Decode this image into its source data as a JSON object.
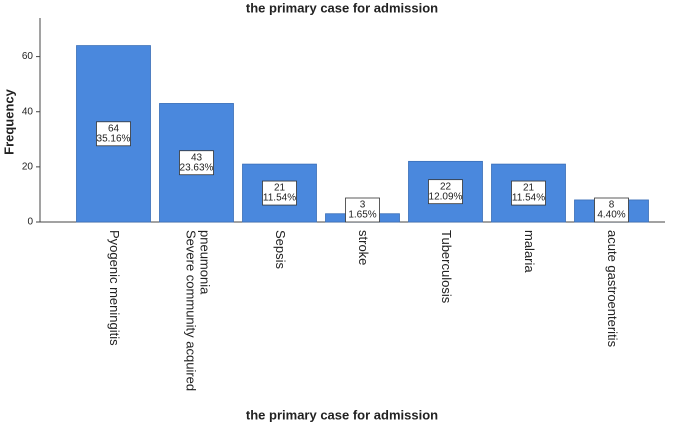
{
  "chart_data": {
    "type": "bar",
    "title": "the primary case for admission",
    "x_label": "the primary case for admission",
    "y_label": "Frequency",
    "categories": [
      "Pyogenic meningitis",
      "Severe community acquired pneumonia",
      "Sepsis",
      "stroke",
      "Tuberculosis",
      "malaria",
      "acute gastroenteritis"
    ],
    "values": [
      64,
      43,
      21,
      3,
      22,
      21,
      8
    ],
    "percent_labels": [
      "35.16%",
      "23.63%",
      "11.54%",
      "1.65%",
      "12.09%",
      "11.54%",
      "4.40%"
    ],
    "color": "#4a88dd",
    "ylim": [
      0,
      74
    ],
    "yticks": [
      0,
      20,
      40,
      60
    ]
  }
}
